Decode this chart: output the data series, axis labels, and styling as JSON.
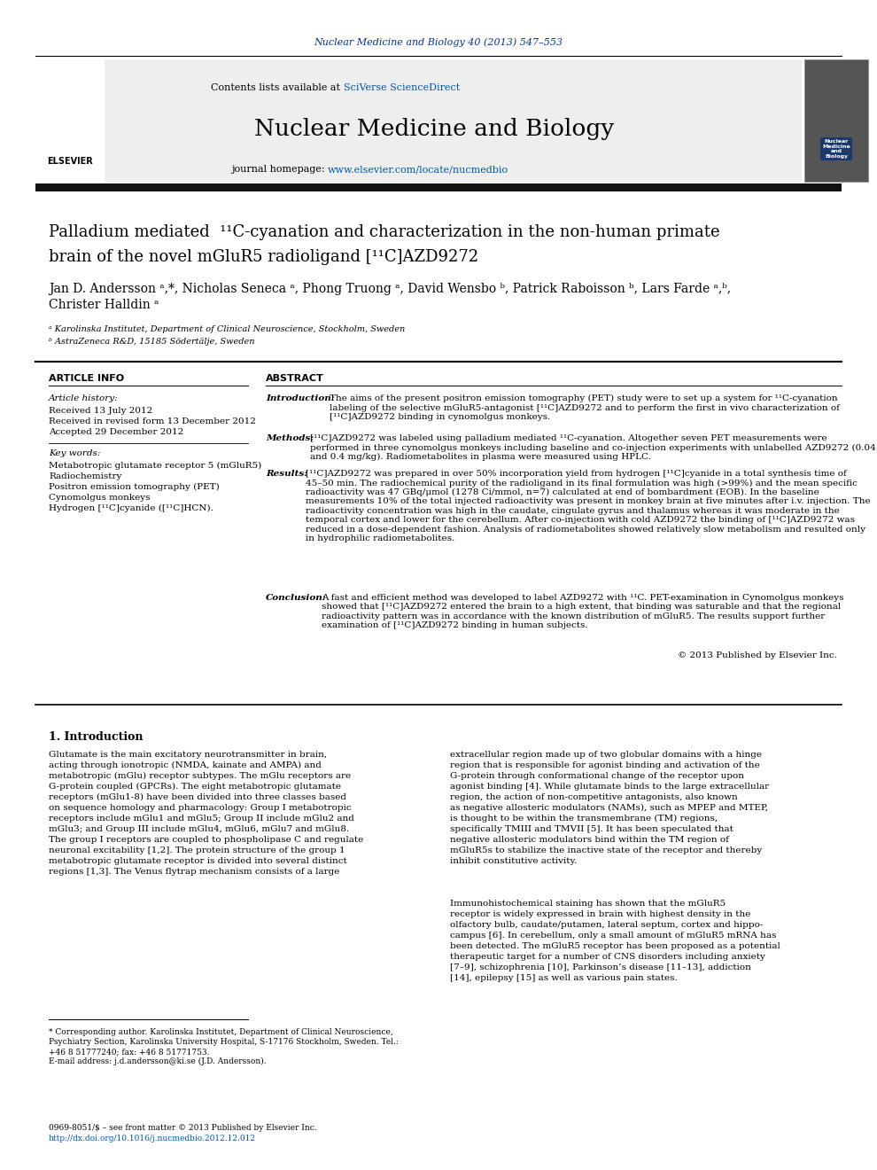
{
  "journal_ref": "Nuclear Medicine and Biology 40 (2013) 547–553",
  "journal_name": "Nuclear Medicine and Biology",
  "contents_text_plain": "Contents lists available at ",
  "contents_text_link": "SciVerse ScienceDirect",
  "homepage_plain": "journal homepage: ",
  "homepage_link": "www.elsevier.com/locate/nucmedbio",
  "title_line1": "Palladium mediated  ¹¹C-cyanation and characterization in the non-human primate",
  "title_line2": "brain of the novel mGluR5 radioligand [¹¹C]AZD9272",
  "author_line1": "Jan D. Andersson ᵃ,*, Nicholas Seneca ᵃ, Phong Truong ᵃ, David Wensbo ᵇ, Patrick Raboisson ᵇ, Lars Farde ᵃ,ᵇ,",
  "author_line2": "Christer Halldin ᵃ",
  "affil_a": "ᵃ Karolinska Institutet, Department of Clinical Neuroscience, Stockholm, Sweden",
  "affil_b": "ᵇ AstraZeneca R&D, 15185 Södertälje, Sweden",
  "section_article_info": "ARTICLE INFO",
  "section_abstract": "ABSTRACT",
  "article_history_label": "Article history:",
  "received": "Received 13 July 2012",
  "revised": "Received in revised form 13 December 2012",
  "accepted": "Accepted 29 December 2012",
  "keywords_label": "Key words:",
  "keyword1": "Metabotropic glutamate receptor 5 (mGluR5)",
  "keyword2": "Radiochemistry",
  "keyword3": "Positron emission tomography (PET)",
  "keyword4": "Cynomolgus monkeys",
  "keyword5": "Hydrogen [¹¹C]cyanide ([¹¹C]HCN).",
  "abs_intro_label": "Introduction:",
  "abs_intro": "The aims of the present positron emission tomography (PET) study were to set up a system for ¹¹C-cyanation labeling of the selective mGluR5-antagonist [¹¹C]AZD9272 and to perform the first in vivo characterization of [¹¹C]AZD9272 binding in cynomolgus monkeys.",
  "abs_methods_label": "Methods:",
  "abs_methods": "[¹¹C]AZD9272 was labeled using palladium mediated ¹¹C-cyanation. Altogether seven PET measurements were performed in three cynomolgus monkeys including baseline and co-injection experiments with unlabelled AZD9272 (0.04 and 0.4 mg/kg). Radiometabolites in plasma were measured using HPLC.",
  "abs_results_label": "Results:",
  "abs_results": "[¹¹C]AZD9272 was prepared in over 50% incorporation yield from hydrogen [¹¹C]cyanide in a total synthesis time of 45–50 min. The radiochemical purity of the radioligand in its final formulation was high (>99%) and the mean specific radioactivity was 47 GBq/μmol (1278 Ci/mmol, n=7) calculated at end of bombardment (EOB). In the baseline measurements 10% of the total injected radioactivity was present in monkey brain at five minutes after i.v. injection. The radioactivity concentration was high in the caudate, cingulate gyrus and thalamus whereas it was moderate in the temporal cortex and lower for the cerebellum. After co-injection with cold AZD9272 the binding of [¹¹C]AZD9272 was reduced in a dose-dependent fashion. Analysis of radiometabolites showed relatively slow metabolism and resulted only in hydrophilic radiometabolites.",
  "abs_conclusion_label": "Conclusion:",
  "abs_conclusion": "A fast and efficient method was developed to label AZD9272 with ¹¹C. PET-examination in Cynomolgus monkeys showed that [¹¹C]AZD9272 entered the brain to a high extent, that binding was saturable and that the regional radioactivity pattern was in accordance with the known distribution of mGluR5. The results support further examination of [¹¹C]AZD9272 binding in human subjects.",
  "copyright": "© 2013 Published by Elsevier Inc.",
  "intro_heading": "1. Introduction",
  "col1_text": "Glutamate is the main excitatory neurotransmitter in brain,\nacting through ionotropic (NMDA, kainate and AMPA) and\nmetabotropic (mGlu) receptor subtypes. The mGlu receptors are\nG-protein coupled (GPCRs). The eight metabotropic glutamate\nreceptors (mGlu1-8) have been divided into three classes based\non sequence homology and pharmacology: Group I metabotropic\nreceptors include mGlu1 and mGlu5; Group II include mGlu2 and\nmGlu3; and Group III include mGlu4, mGlu6, mGlu7 and mGlu8.\nThe group I receptors are coupled to phospholipase C and regulate\nneuronal excitability [1,2]. The protein structure of the group 1\nmetabotropic glutamate receptor is divided into several distinct\nregions [1,3]. The Venus flytrap mechanism consists of a large",
  "col2_text": "extracellular region made up of two globular domains with a hinge\nregion that is responsible for agonist binding and activation of the\nG-protein through conformational change of the receptor upon\nagonist binding [4]. While glutamate binds to the large extracellular\nregion, the action of non-competitive antagonists, also known\nas negative allosteric modulators (NAMs), such as MPEP and MTEP,\nis thought to be within the transmembrane (TM) regions,\nspecifically TMIII and TMVII [5]. It has been speculated that\nnegative allosteric modulators bind within the TM region of\nmGluR5s to stabilize the inactive state of the receptor and thereby\ninhibit constitutive activity.",
  "col2_text2": "Immunohistochemical staining has shown that the mGluR5\nreceptor is widely expressed in brain with highest density in the\nolfactory bulb, caudate/putamen, lateral septum, cortex and hippo-\ncampus [6]. In cerebellum, only a small amount of mGluR5 mRNA has\nbeen detected. The mGluR5 receptor has been proposed as a potential\ntherapeutic target for a number of CNS disorders including anxiety\n[7–9], schizophrenia [10], Parkinson’s disease [11–13], addiction\n[14], epilepsy [15] as well as various pain states.",
  "footnote1": "* Corresponding author. Karolinska Institutet, Department of Clinical Neuroscience,",
  "footnote2": "Psychiatry Section, Karolinska University Hospital, S-17176 Stockholm, Sweden. Tel.:",
  "footnote3": "+46 8 51777240; fax: +46 8 51771753.",
  "footnote4": "E-mail address: j.d.andersson@ki.se (J.D. Andersson).",
  "bottom_issn": "0969-8051/$ – see front matter © 2013 Published by Elsevier Inc.",
  "bottom_doi": "http://dx.doi.org/10.1016/j.nucmedbio.2012.12.012",
  "bg_color": "#ffffff",
  "header_color": "#003399",
  "link_color": "#0055aa",
  "header_bg": "#eeeeee",
  "dark_bar_color": "#111111"
}
